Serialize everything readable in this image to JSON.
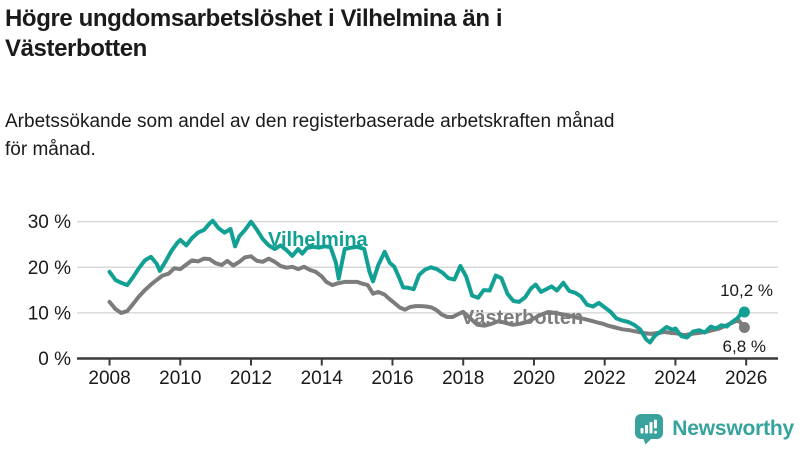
{
  "header": {
    "title_lines": [
      "Högre ungdomsarbetslöshet i Vilhelmina än i",
      "Västerbotten"
    ],
    "subtitle_lines": [
      "Arbetssökande som andel av den registerbaserade arbetskraften månad",
      "för månad."
    ]
  },
  "branding": {
    "logo_text": "Newsworthy",
    "logo_icon": "bar-chart-speech-bubble-icon"
  },
  "colors": {
    "vilhelmina_teal": "#13A094",
    "vasterbotten_gray": "#7C7C7C",
    "grid": "#D9D9D9",
    "axis": "#3A3A3A",
    "text": "#1A1A1A",
    "brand_teal": "#35A39E"
  },
  "chart_data": {
    "type": "line",
    "title": "Högre ungdomsarbetslöshet i Vilhelmina än i Västerbotten",
    "subtitle": "Arbetssökande som andel av den registerbaserade arbetskraften månad för månad.",
    "unit": "%",
    "grid": "horizontal",
    "legend_position": "inline-labels",
    "xlim": [
      2007.08,
      2026.9
    ],
    "ylim": [
      0,
      33
    ],
    "x_ticks": [
      {
        "value": 2008,
        "label": "2008"
      },
      {
        "value": 2010,
        "label": "2010"
      },
      {
        "value": 2012,
        "label": "2012"
      },
      {
        "value": 2014,
        "label": "2014"
      },
      {
        "value": 2016,
        "label": "2016"
      },
      {
        "value": 2018,
        "label": "2018"
      },
      {
        "value": 2020,
        "label": "2020"
      },
      {
        "value": 2022,
        "label": "2022"
      },
      {
        "value": 2024,
        "label": "2024"
      },
      {
        "value": 2026,
        "label": "2026"
      }
    ],
    "y_ticks": [
      {
        "value": 0,
        "label": "0 %"
      },
      {
        "value": 10,
        "label": "10 %"
      },
      {
        "value": 20,
        "label": "20 %"
      },
      {
        "value": 30,
        "label": "30 %"
      }
    ],
    "series": [
      {
        "id": "vasterbotten",
        "name": "Västerbotten",
        "color": "#7C7C7C",
        "end_label": "6,8 %",
        "end_value": 6.8,
        "points": [
          [
            2008.0,
            12.4
          ],
          [
            2008.17,
            10.8
          ],
          [
            2008.33,
            10.0
          ],
          [
            2008.5,
            10.4
          ],
          [
            2008.67,
            12.0
          ],
          [
            2008.83,
            13.6
          ],
          [
            2009.0,
            15.0
          ],
          [
            2009.17,
            16.2
          ],
          [
            2009.33,
            17.2
          ],
          [
            2009.5,
            18.2
          ],
          [
            2009.67,
            18.6
          ],
          [
            2009.83,
            19.8
          ],
          [
            2010.0,
            19.6
          ],
          [
            2010.17,
            20.6
          ],
          [
            2010.33,
            21.5
          ],
          [
            2010.5,
            21.3
          ],
          [
            2010.67,
            21.9
          ],
          [
            2010.83,
            21.8
          ],
          [
            2011.0,
            20.9
          ],
          [
            2011.17,
            20.5
          ],
          [
            2011.33,
            21.4
          ],
          [
            2011.5,
            20.4
          ],
          [
            2011.67,
            21.2
          ],
          [
            2011.83,
            22.2
          ],
          [
            2012.0,
            22.4
          ],
          [
            2012.17,
            21.4
          ],
          [
            2012.33,
            21.2
          ],
          [
            2012.5,
            21.9
          ],
          [
            2012.67,
            21.2
          ],
          [
            2012.83,
            20.3
          ],
          [
            2013.0,
            19.9
          ],
          [
            2013.17,
            20.1
          ],
          [
            2013.33,
            19.6
          ],
          [
            2013.5,
            20.1
          ],
          [
            2013.67,
            19.4
          ],
          [
            2013.83,
            19.0
          ],
          [
            2014.0,
            18.0
          ],
          [
            2014.13,
            16.8
          ],
          [
            2014.3,
            16.1
          ],
          [
            2014.45,
            16.5
          ],
          [
            2014.65,
            16.8
          ],
          [
            2014.85,
            16.8
          ],
          [
            2015.0,
            16.8
          ],
          [
            2015.15,
            16.4
          ],
          [
            2015.3,
            16.1
          ],
          [
            2015.45,
            14.2
          ],
          [
            2015.6,
            14.6
          ],
          [
            2015.78,
            14.0
          ],
          [
            2015.92,
            13.0
          ],
          [
            2016.05,
            12.2
          ],
          [
            2016.2,
            11.2
          ],
          [
            2016.35,
            10.7
          ],
          [
            2016.5,
            11.3
          ],
          [
            2016.65,
            11.5
          ],
          [
            2016.8,
            11.5
          ],
          [
            2016.95,
            11.4
          ],
          [
            2017.1,
            11.2
          ],
          [
            2017.25,
            10.6
          ],
          [
            2017.4,
            9.6
          ],
          [
            2017.55,
            9.1
          ],
          [
            2017.7,
            9.1
          ],
          [
            2017.9,
            9.9
          ],
          [
            2018.0,
            10.2
          ],
          [
            2018.2,
            8.8
          ],
          [
            2018.4,
            7.4
          ],
          [
            2018.6,
            7.2
          ],
          [
            2018.8,
            7.6
          ],
          [
            2019.0,
            8.2
          ],
          [
            2019.2,
            7.8
          ],
          [
            2019.4,
            7.4
          ],
          [
            2019.6,
            7.6
          ],
          [
            2019.8,
            8.0
          ],
          [
            2020.0,
            8.8
          ],
          [
            2020.2,
            9.6
          ],
          [
            2020.4,
            10.2
          ],
          [
            2020.6,
            10.0
          ],
          [
            2020.8,
            9.7
          ],
          [
            2021.0,
            9.4
          ],
          [
            2021.2,
            9.0
          ],
          [
            2021.4,
            8.7
          ],
          [
            2021.6,
            8.3
          ],
          [
            2021.8,
            7.9
          ],
          [
            2021.95,
            7.6
          ],
          [
            2022.1,
            7.2
          ],
          [
            2022.3,
            6.8
          ],
          [
            2022.5,
            6.4
          ],
          [
            2022.7,
            6.2
          ],
          [
            2022.9,
            5.9
          ],
          [
            2023.1,
            5.6
          ],
          [
            2023.3,
            5.4
          ],
          [
            2023.5,
            5.6
          ],
          [
            2023.7,
            5.8
          ],
          [
            2023.9,
            5.6
          ],
          [
            2024.05,
            5.5
          ],
          [
            2024.25,
            5.1
          ],
          [
            2024.45,
            5.4
          ],
          [
            2024.65,
            5.6
          ],
          [
            2024.9,
            5.9
          ],
          [
            2025.05,
            6.2
          ],
          [
            2025.25,
            6.6
          ],
          [
            2025.45,
            7.3
          ],
          [
            2025.65,
            8.0
          ],
          [
            2025.78,
            8.4
          ],
          [
            2025.95,
            6.8
          ]
        ]
      },
      {
        "id": "vilhelmina",
        "name": "Vilhelmina",
        "color": "#13A094",
        "end_label": "10,2 %",
        "end_value": 10.2,
        "points": [
          [
            2008.0,
            19.0
          ],
          [
            2008.17,
            17.2
          ],
          [
            2008.33,
            16.6
          ],
          [
            2008.5,
            16.1
          ],
          [
            2008.67,
            17.9
          ],
          [
            2008.83,
            19.8
          ],
          [
            2009.0,
            21.5
          ],
          [
            2009.17,
            22.3
          ],
          [
            2009.33,
            20.8
          ],
          [
            2009.42,
            19.2
          ],
          [
            2009.58,
            21.2
          ],
          [
            2009.75,
            23.6
          ],
          [
            2009.92,
            25.4
          ],
          [
            2010.0,
            26.0
          ],
          [
            2010.17,
            24.8
          ],
          [
            2010.33,
            26.4
          ],
          [
            2010.5,
            27.6
          ],
          [
            2010.67,
            28.2
          ],
          [
            2010.83,
            29.6
          ],
          [
            2010.92,
            30.2
          ],
          [
            2011.08,
            28.6
          ],
          [
            2011.25,
            27.6
          ],
          [
            2011.42,
            28.4
          ],
          [
            2011.55,
            24.6
          ],
          [
            2011.67,
            26.8
          ],
          [
            2011.83,
            28.2
          ],
          [
            2012.0,
            30.0
          ],
          [
            2012.17,
            28.2
          ],
          [
            2012.33,
            26.2
          ],
          [
            2012.5,
            24.8
          ],
          [
            2012.67,
            24.0
          ],
          [
            2012.83,
            24.8
          ],
          [
            2013.0,
            23.8
          ],
          [
            2013.17,
            22.5
          ],
          [
            2013.33,
            24.0
          ],
          [
            2013.45,
            23.0
          ],
          [
            2013.58,
            24.2
          ],
          [
            2013.75,
            24.5
          ],
          [
            2013.92,
            24.3
          ],
          [
            2014.08,
            24.6
          ],
          [
            2014.25,
            24.4
          ],
          [
            2014.4,
            21.0
          ],
          [
            2014.48,
            17.5
          ],
          [
            2014.65,
            24.0
          ],
          [
            2014.83,
            24.3
          ],
          [
            2015.0,
            24.5
          ],
          [
            2015.2,
            24.0
          ],
          [
            2015.35,
            19.0
          ],
          [
            2015.45,
            16.9
          ],
          [
            2015.6,
            20.5
          ],
          [
            2015.78,
            23.4
          ],
          [
            2015.92,
            21.0
          ],
          [
            2016.05,
            20.1
          ],
          [
            2016.2,
            17.5
          ],
          [
            2016.3,
            15.6
          ],
          [
            2016.45,
            15.5
          ],
          [
            2016.6,
            15.2
          ],
          [
            2016.75,
            18.3
          ],
          [
            2016.92,
            19.5
          ],
          [
            2017.08,
            20.0
          ],
          [
            2017.25,
            19.6
          ],
          [
            2017.42,
            18.8
          ],
          [
            2017.58,
            17.6
          ],
          [
            2017.75,
            17.3
          ],
          [
            2017.92,
            20.3
          ],
          [
            2018.08,
            18.0
          ],
          [
            2018.25,
            13.8
          ],
          [
            2018.42,
            13.3
          ],
          [
            2018.58,
            15.0
          ],
          [
            2018.75,
            14.9
          ],
          [
            2018.92,
            18.2
          ],
          [
            2019.08,
            17.6
          ],
          [
            2019.25,
            14.2
          ],
          [
            2019.42,
            12.6
          ],
          [
            2019.58,
            12.4
          ],
          [
            2019.75,
            13.4
          ],
          [
            2019.92,
            15.4
          ],
          [
            2020.05,
            16.2
          ],
          [
            2020.2,
            14.6
          ],
          [
            2020.35,
            15.2
          ],
          [
            2020.5,
            15.8
          ],
          [
            2020.65,
            14.9
          ],
          [
            2020.83,
            16.6
          ],
          [
            2021.0,
            14.8
          ],
          [
            2021.17,
            14.4
          ],
          [
            2021.33,
            13.6
          ],
          [
            2021.5,
            11.8
          ],
          [
            2021.67,
            11.4
          ],
          [
            2021.83,
            12.2
          ],
          [
            2022.0,
            11.2
          ],
          [
            2022.17,
            10.2
          ],
          [
            2022.33,
            8.8
          ],
          [
            2022.5,
            8.3
          ],
          [
            2022.67,
            8.0
          ],
          [
            2022.83,
            7.4
          ],
          [
            2023.0,
            6.4
          ],
          [
            2023.17,
            4.2
          ],
          [
            2023.28,
            3.5
          ],
          [
            2023.42,
            5.0
          ],
          [
            2023.58,
            5.9
          ],
          [
            2023.75,
            6.9
          ],
          [
            2023.92,
            6.3
          ],
          [
            2024.0,
            6.6
          ],
          [
            2024.17,
            4.9
          ],
          [
            2024.33,
            4.6
          ],
          [
            2024.5,
            5.9
          ],
          [
            2024.67,
            6.2
          ],
          [
            2024.83,
            5.7
          ],
          [
            2025.0,
            7.0
          ],
          [
            2025.15,
            6.6
          ],
          [
            2025.3,
            7.3
          ],
          [
            2025.45,
            7.0
          ],
          [
            2025.6,
            8.0
          ],
          [
            2025.75,
            8.8
          ],
          [
            2025.85,
            9.8
          ],
          [
            2025.95,
            10.2
          ]
        ]
      }
    ]
  }
}
